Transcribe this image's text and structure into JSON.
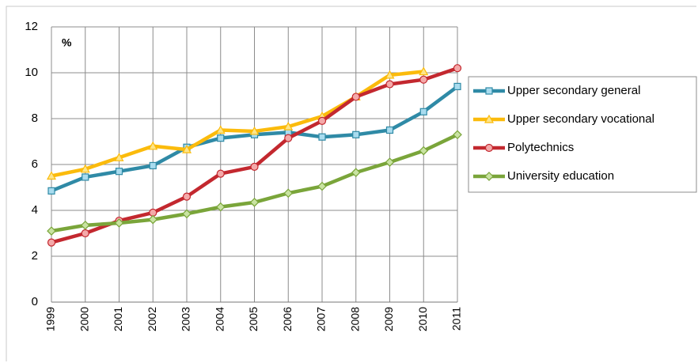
{
  "chart_data": {
    "type": "line",
    "y_label": "%",
    "categories": [
      "1999",
      "2000",
      "2001",
      "2002",
      "2003",
      "2004",
      "2005",
      "2006",
      "2007",
      "2008",
      "2009",
      "2010",
      "2011"
    ],
    "series": [
      {
        "name": "Upper secondary general",
        "color": "#2f8aa6",
        "marker": "square",
        "marker_fill": "#a9dcef",
        "values": [
          4.85,
          5.45,
          5.7,
          5.95,
          6.75,
          7.15,
          7.3,
          7.4,
          7.2,
          7.3,
          7.5,
          8.3,
          9.4
        ]
      },
      {
        "name": "Upper secondary vocational",
        "color": "#fbbb0c",
        "marker": "triangle",
        "marker_fill": "#fde58a",
        "values": [
          5.5,
          5.8,
          6.3,
          6.8,
          6.65,
          7.5,
          7.45,
          7.65,
          8.1,
          8.95,
          9.9,
          10.05,
          null
        ]
      },
      {
        "name": "Polytechnics",
        "color": "#c3282f",
        "marker": "circle",
        "marker_fill": "#f4a9a9",
        "values": [
          2.6,
          3.0,
          3.55,
          3.9,
          4.6,
          5.6,
          5.9,
          7.15,
          7.9,
          8.95,
          9.5,
          9.7,
          10.2
        ]
      },
      {
        "name": "University education",
        "color": "#7aa53a",
        "marker": "diamond",
        "marker_fill": "#c9e3a2",
        "values": [
          3.1,
          3.35,
          3.45,
          3.6,
          3.85,
          4.15,
          4.35,
          4.75,
          5.05,
          5.65,
          6.1,
          6.6,
          7.3
        ]
      }
    ],
    "ylim": [
      0,
      12
    ],
    "yticks": [
      0,
      2,
      4,
      6,
      8,
      10,
      12
    ],
    "grid": true,
    "legend": "right"
  }
}
